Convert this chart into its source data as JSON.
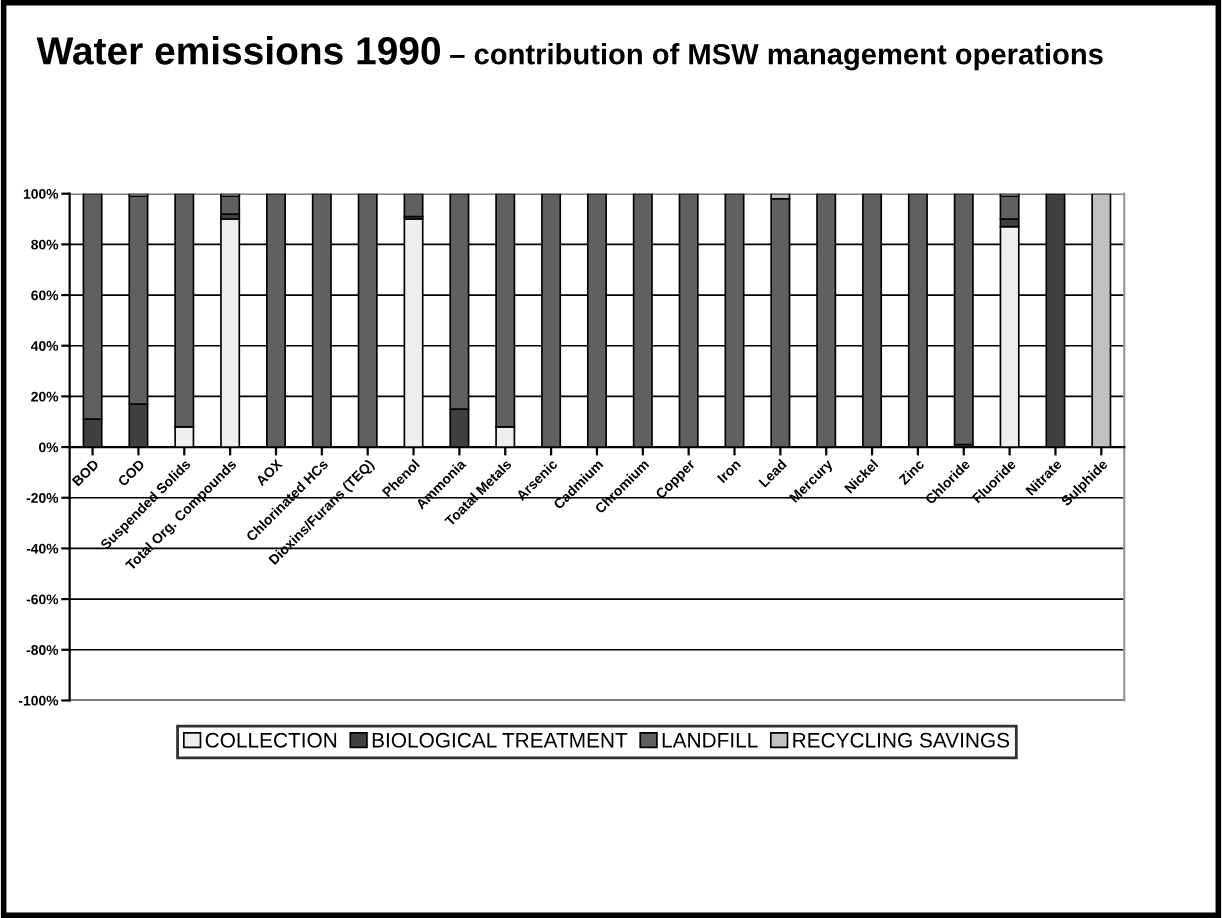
{
  "chart_data": {
    "type": "bar",
    "title": "Water emissions 1990",
    "subtitle": "– contribution of MSW management operations",
    "categories": [
      "BOD",
      "COD",
      "Suspended Solids",
      "Total Org. Compounds",
      "AOX",
      "Chlorinated HCs",
      "Dioxins/Furans (TEQ)",
      "Phenol",
      "Ammonia",
      "Toatal Metals",
      "Arsenic",
      "Cadmium",
      "Chromium",
      "Copper",
      "Iron",
      "Lead",
      "Mercury",
      "Nickel",
      "Zinc",
      "Chloride",
      "Fluoride",
      "Nitrate",
      "Sulphide"
    ],
    "stacked": true,
    "series": [
      {
        "name": "COLLECTION",
        "color": "#eeeeee",
        "values": [
          0,
          0,
          8,
          90,
          0,
          0,
          0,
          90,
          0,
          8,
          0,
          0,
          0,
          0,
          0,
          0,
          0,
          0,
          0,
          0,
          87,
          0,
          0
        ]
      },
      {
        "name": "BIOLOGICAL TREATMENT",
        "color": "#404040",
        "values": [
          11,
          17,
          0,
          2,
          0,
          0,
          0,
          1,
          15,
          0,
          0,
          0,
          0,
          0,
          0,
          0,
          0,
          0,
          0,
          1,
          3,
          100,
          0
        ]
      },
      {
        "name": "LANDFILL",
        "color": "#606060",
        "values": [
          89,
          82,
          92,
          7,
          100,
          100,
          100,
          9,
          85,
          92,
          100,
          100,
          100,
          100,
          100,
          98,
          100,
          100,
          100,
          99,
          9,
          0,
          0
        ]
      },
      {
        "name": "RECYCLING SAVINGS",
        "color": "#c0c0c0",
        "values": [
          0,
          1,
          0,
          1,
          0,
          0,
          0,
          0,
          0,
          0,
          0,
          0,
          0,
          0,
          0,
          2,
          0,
          0,
          0,
          0,
          1,
          0,
          100
        ]
      }
    ],
    "ylim": [
      -100,
      100
    ],
    "yticks": [
      {
        "value": -100,
        "label": "-100%"
      },
      {
        "value": -80,
        "label": "-80%"
      },
      {
        "value": -60,
        "label": "-60%"
      },
      {
        "value": -40,
        "label": "-40%"
      },
      {
        "value": -20,
        "label": "-20%"
      },
      {
        "value": 0,
        "label": "0%"
      },
      {
        "value": 20,
        "label": "20%"
      },
      {
        "value": 40,
        "label": "40%"
      },
      {
        "value": 60,
        "label": "60%"
      },
      {
        "value": 80,
        "label": "80%"
      },
      {
        "value": 100,
        "label": "100%"
      }
    ],
    "grid": "y",
    "legend": "bottom"
  }
}
